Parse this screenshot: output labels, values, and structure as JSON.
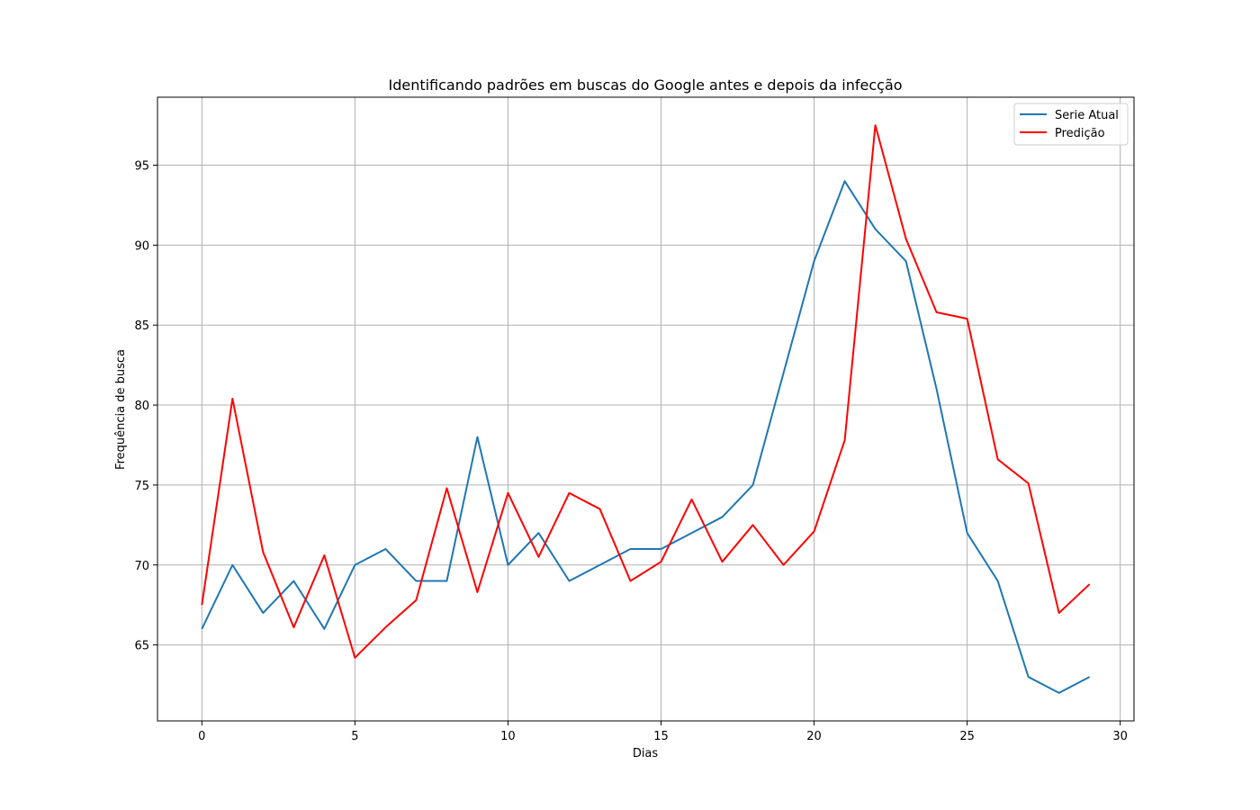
{
  "chart_data": {
    "type": "line",
    "title": "Identificando padrões em buscas do Google antes e depois da infecção",
    "xlabel": "Dias",
    "ylabel": "Frequência de busca",
    "xlim": [
      -1.45,
      30.45
    ],
    "ylim": [
      60.25,
      99.25
    ],
    "xticks": [
      0,
      5,
      10,
      15,
      20,
      25,
      30
    ],
    "yticks": [
      65,
      70,
      75,
      80,
      85,
      90,
      95
    ],
    "grid": true,
    "legend_position": "top-right",
    "x": [
      0,
      1,
      2,
      3,
      4,
      5,
      6,
      7,
      8,
      9,
      10,
      11,
      12,
      13,
      14,
      15,
      16,
      17,
      18,
      19,
      20,
      21,
      22,
      23,
      24,
      25,
      26,
      27,
      28,
      29
    ],
    "series": [
      {
        "name": "Serie Atual",
        "color": "#1f77b4",
        "values": [
          66,
          70,
          67,
          69,
          66,
          70,
          71,
          69,
          69,
          78,
          70,
          72,
          69,
          70,
          71,
          71,
          72,
          73,
          75,
          82,
          89,
          94,
          91,
          89,
          81,
          72,
          69,
          63,
          62,
          63
        ]
      },
      {
        "name": "Predição",
        "color": "#ff0000",
        "values": [
          67.5,
          80.4,
          70.8,
          66.1,
          70.6,
          64.2,
          66.1,
          67.8,
          74.8,
          68.3,
          74.5,
          70.5,
          74.5,
          73.5,
          69.0,
          70.2,
          74.1,
          70.2,
          72.5,
          70.0,
          72.1,
          77.8,
          97.5,
          90.4,
          85.8,
          85.4,
          76.6,
          75.1,
          67.0,
          68.8
        ]
      }
    ]
  }
}
